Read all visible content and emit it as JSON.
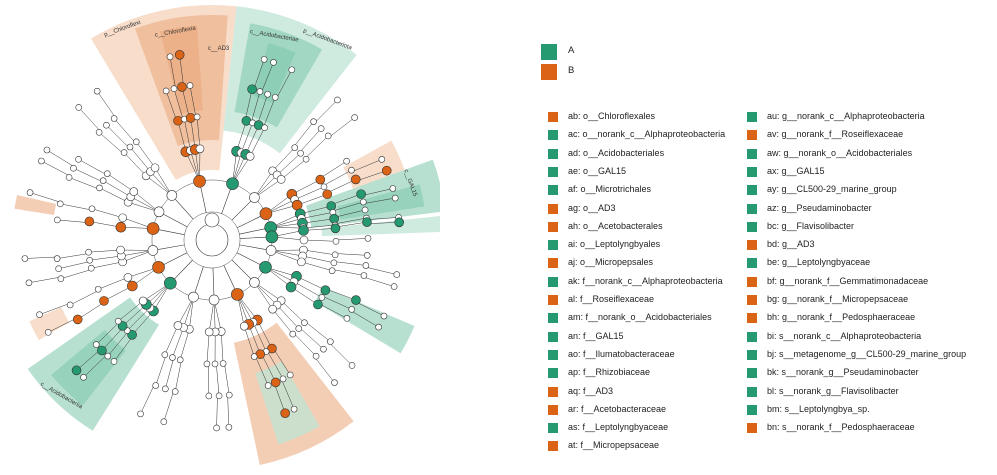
{
  "colors": {
    "A": "#25996f",
    "B": "#db6316"
  },
  "groups": [
    {
      "label": "A",
      "group": "A"
    },
    {
      "label": "B",
      "group": "B"
    }
  ],
  "clade_labels": {
    "chloroflexi": "p__Chloroflexi",
    "chloroflexia": "c__Chloroflexia",
    "ad3": "c__AD3",
    "acidobacteriota": "p__Acidobacteriota",
    "acidobacteriae": "c__Acidobacteriae",
    "gal15": "c__GAL15",
    "acidobacteriia": "c__Acidobacteriia"
  },
  "markers": [
    {
      "label": "ab: o__Chloroflexales",
      "group": "B"
    },
    {
      "label": "ac: o__norank_c__Alphaproteobacteria",
      "group": "A"
    },
    {
      "label": "ad: o__Acidobacteriales",
      "group": "A"
    },
    {
      "label": "ae: o__GAL15",
      "group": "A"
    },
    {
      "label": "af: o__Microtrichales",
      "group": "A"
    },
    {
      "label": "ag: o__AD3",
      "group": "B"
    },
    {
      "label": "ah: o__Acetobacterales",
      "group": "B"
    },
    {
      "label": "ai: o__Leptolyngbyales",
      "group": "A"
    },
    {
      "label": "aj: o__Micropepsales",
      "group": "B"
    },
    {
      "label": "ak: f__norank_c__Alphaproteobacteria",
      "group": "A"
    },
    {
      "label": "al: f__Roseiflexaceae",
      "group": "B"
    },
    {
      "label": "am: f__norank_o__Acidobacteriales",
      "group": "A"
    },
    {
      "label": "an: f__GAL15",
      "group": "A"
    },
    {
      "label": "ao: f__Ilumatobacteraceae",
      "group": "A"
    },
    {
      "label": "ap: f__Rhizobiaceae",
      "group": "A"
    },
    {
      "label": "aq: f__AD3",
      "group": "B"
    },
    {
      "label": "ar: f__Acetobacteraceae",
      "group": "B"
    },
    {
      "label": "as: f__Leptolyngbyaceae",
      "group": "A"
    },
    {
      "label": "at: f__Micropepsaceae",
      "group": "B"
    },
    {
      "label": "au: g__norank_c__Alphaproteobacteria",
      "group": "A"
    },
    {
      "label": "av: g__norank_f__Roseiflexaceae",
      "group": "B"
    },
    {
      "label": "aw: g__norank_o__Acidobacteriales",
      "group": "A"
    },
    {
      "label": "ax: g__GAL15",
      "group": "A"
    },
    {
      "label": "ay: g__CL500-29_marine_group",
      "group": "A"
    },
    {
      "label": "az: g__Pseudaminobacter",
      "group": "A"
    },
    {
      "label": "bc: g__Flavisolibacter",
      "group": "A"
    },
    {
      "label": "bd: g__AD3",
      "group": "B"
    },
    {
      "label": "be: g__Leptolyngbyaceae",
      "group": "A"
    },
    {
      "label": "bf: g__norank_f__Gemmatimonadaceae",
      "group": "B"
    },
    {
      "label": "bg: g__norank_f__Micropepsaceae",
      "group": "B"
    },
    {
      "label": "bh: g__norank_f__Pedosphaeraceae",
      "group": "B"
    },
    {
      "label": "bi: s__norank_c__Alphaproteobacteria",
      "group": "A"
    },
    {
      "label": "bj: s__metagenome_g__CL500-29_marine_group",
      "group": "A"
    },
    {
      "label": "bk: s__norank_g__Pseudaminobacter",
      "group": "A"
    },
    {
      "label": "bl: s__norank_g__Flavisolibacter",
      "group": "A"
    },
    {
      "label": "bm: s__Leptolyngbya_sp.",
      "group": "A"
    },
    {
      "label": "bn: s__norank_f__Pedosphaeraceae",
      "group": "B"
    }
  ]
}
